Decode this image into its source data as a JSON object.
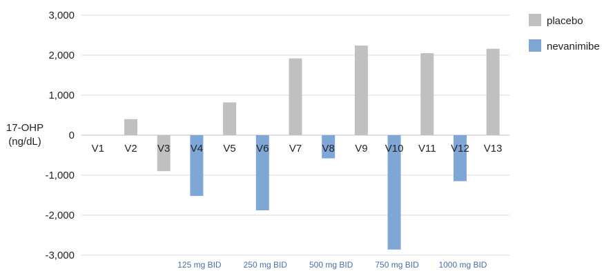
{
  "chart_data": {
    "type": "bar",
    "ylabel": [
      "17-OHP",
      "(ng/dL)"
    ],
    "ylim": [
      -3000,
      3000
    ],
    "yticks": [
      3000,
      2000,
      1000,
      0,
      -1000,
      -2000,
      -3000
    ],
    "ytick_labels": [
      "3,000",
      "2,000",
      "1,000",
      "0",
      "-1,000",
      "-2,000",
      "-3,000"
    ],
    "categories": [
      "V1",
      "V2",
      "V3",
      "V4",
      "V5",
      "V6",
      "V7",
      "V8",
      "V9",
      "V10",
      "V11",
      "V12",
      "V13"
    ],
    "series": [
      {
        "name": "placebo",
        "color": "#c0c0c0",
        "values": [
          null,
          400,
          -900,
          null,
          820,
          null,
          1920,
          null,
          2240,
          null,
          2050,
          null,
          2160
        ]
      },
      {
        "name": "nevanimibe",
        "color": "#7fa7d6",
        "values": [
          null,
          null,
          null,
          -1520,
          null,
          -1880,
          null,
          -580,
          null,
          -2860,
          null,
          -1150,
          null
        ]
      }
    ],
    "legend": "top-right",
    "grid": true,
    "annotations": [
      {
        "text": "125 mg BID",
        "category": "V4"
      },
      {
        "text": "250 mg BID",
        "category": "V6"
      },
      {
        "text": "500 mg BID",
        "category": "V8"
      },
      {
        "text": "750 mg BID",
        "category": "V10"
      },
      {
        "text": "1000 mg BID",
        "category": "V12"
      }
    ]
  }
}
